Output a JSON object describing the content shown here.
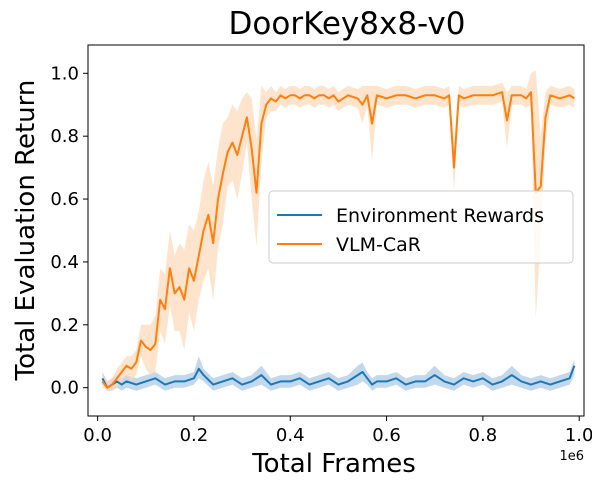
{
  "chart_data": {
    "type": "line",
    "title": "DoorKey8x8-v0",
    "xlabel": "Total Frames",
    "ylabel": "Total Evaluation Return",
    "x_scale_label": "1e6",
    "xlim": [
      -0.02,
      1.01
    ],
    "ylim": [
      -0.09,
      1.09
    ],
    "x_ticks": [
      0.0,
      0.2,
      0.4,
      0.6,
      0.8,
      1.0
    ],
    "x_tick_labels": [
      "0.0",
      "0.2",
      "0.4",
      "0.6",
      "0.8",
      "1.0"
    ],
    "y_ticks": [
      0.0,
      0.2,
      0.4,
      0.6,
      0.8,
      1.0
    ],
    "y_tick_labels": [
      "0.0",
      "0.2",
      "0.4",
      "0.6",
      "0.8",
      "1.0"
    ],
    "grid": false,
    "legend_position": "center-right",
    "series": [
      {
        "name": "Environment Rewards",
        "color": "#1f77b4",
        "band_color": "#a8c8e6",
        "x": [
          0.01,
          0.02,
          0.03,
          0.04,
          0.05,
          0.06,
          0.08,
          0.1,
          0.12,
          0.14,
          0.16,
          0.18,
          0.2,
          0.21,
          0.22,
          0.24,
          0.26,
          0.28,
          0.3,
          0.32,
          0.34,
          0.36,
          0.38,
          0.4,
          0.42,
          0.44,
          0.46,
          0.48,
          0.5,
          0.52,
          0.54,
          0.55,
          0.56,
          0.57,
          0.58,
          0.6,
          0.62,
          0.64,
          0.66,
          0.68,
          0.7,
          0.72,
          0.74,
          0.76,
          0.78,
          0.8,
          0.82,
          0.84,
          0.86,
          0.88,
          0.9,
          0.92,
          0.94,
          0.96,
          0.98,
          0.99
        ],
        "y": [
          0.03,
          0.0,
          0.01,
          0.02,
          0.01,
          0.02,
          0.01,
          0.02,
          0.03,
          0.01,
          0.02,
          0.02,
          0.03,
          0.06,
          0.04,
          0.01,
          0.02,
          0.03,
          0.01,
          0.02,
          0.04,
          0.01,
          0.02,
          0.02,
          0.03,
          0.01,
          0.02,
          0.03,
          0.01,
          0.02,
          0.04,
          0.05,
          0.03,
          0.01,
          0.02,
          0.02,
          0.03,
          0.01,
          0.02,
          0.02,
          0.04,
          0.02,
          0.01,
          0.03,
          0.02,
          0.03,
          0.01,
          0.02,
          0.04,
          0.02,
          0.01,
          0.02,
          0.01,
          0.02,
          0.03,
          0.07
        ],
        "lower": [
          0.01,
          -0.01,
          -0.01,
          0.0,
          -0.01,
          0.0,
          -0.01,
          0.0,
          0.01,
          -0.01,
          0.0,
          0.0,
          0.01,
          0.03,
          0.02,
          -0.01,
          0.0,
          0.01,
          -0.01,
          0.0,
          0.01,
          -0.01,
          0.0,
          0.0,
          0.01,
          -0.01,
          0.0,
          0.01,
          -0.01,
          0.0,
          0.01,
          0.02,
          0.01,
          -0.01,
          0.0,
          0.0,
          0.01,
          -0.01,
          0.0,
          0.0,
          0.01,
          0.0,
          -0.01,
          0.01,
          0.0,
          0.01,
          -0.01,
          0.0,
          0.01,
          0.0,
          -0.01,
          0.0,
          -0.01,
          0.0,
          0.01,
          0.04
        ],
        "upper": [
          0.05,
          0.02,
          0.03,
          0.04,
          0.03,
          0.04,
          0.03,
          0.04,
          0.05,
          0.03,
          0.04,
          0.04,
          0.05,
          0.1,
          0.06,
          0.03,
          0.04,
          0.05,
          0.03,
          0.04,
          0.07,
          0.03,
          0.04,
          0.04,
          0.05,
          0.03,
          0.04,
          0.05,
          0.03,
          0.04,
          0.07,
          0.08,
          0.05,
          0.03,
          0.04,
          0.04,
          0.05,
          0.03,
          0.04,
          0.04,
          0.07,
          0.04,
          0.03,
          0.05,
          0.04,
          0.05,
          0.03,
          0.04,
          0.07,
          0.04,
          0.03,
          0.04,
          0.03,
          0.04,
          0.05,
          0.09
        ]
      },
      {
        "name": "VLM-CaR",
        "color": "#ff7f0e",
        "band_color": "#ffd9b8",
        "x": [
          0.01,
          0.02,
          0.03,
          0.04,
          0.05,
          0.06,
          0.07,
          0.08,
          0.09,
          0.1,
          0.11,
          0.12,
          0.13,
          0.14,
          0.15,
          0.16,
          0.17,
          0.18,
          0.19,
          0.2,
          0.21,
          0.22,
          0.23,
          0.24,
          0.25,
          0.26,
          0.27,
          0.28,
          0.29,
          0.3,
          0.31,
          0.32,
          0.33,
          0.34,
          0.35,
          0.36,
          0.37,
          0.38,
          0.39,
          0.4,
          0.41,
          0.42,
          0.43,
          0.44,
          0.45,
          0.46,
          0.47,
          0.48,
          0.49,
          0.5,
          0.52,
          0.54,
          0.55,
          0.56,
          0.57,
          0.58,
          0.6,
          0.62,
          0.64,
          0.66,
          0.68,
          0.7,
          0.72,
          0.73,
          0.74,
          0.75,
          0.76,
          0.78,
          0.8,
          0.82,
          0.84,
          0.85,
          0.86,
          0.88,
          0.89,
          0.9,
          0.91,
          0.92,
          0.93,
          0.94,
          0.96,
          0.98,
          0.99
        ],
        "y": [
          0.02,
          0.0,
          0.01,
          0.03,
          0.05,
          0.07,
          0.06,
          0.08,
          0.15,
          0.13,
          0.12,
          0.14,
          0.28,
          0.25,
          0.38,
          0.3,
          0.32,
          0.28,
          0.38,
          0.34,
          0.42,
          0.5,
          0.55,
          0.46,
          0.6,
          0.68,
          0.75,
          0.78,
          0.74,
          0.8,
          0.86,
          0.76,
          0.62,
          0.84,
          0.9,
          0.92,
          0.91,
          0.93,
          0.92,
          0.93,
          0.93,
          0.92,
          0.93,
          0.93,
          0.92,
          0.93,
          0.93,
          0.92,
          0.93,
          0.91,
          0.93,
          0.92,
          0.9,
          0.93,
          0.84,
          0.93,
          0.92,
          0.93,
          0.93,
          0.92,
          0.93,
          0.93,
          0.92,
          0.93,
          0.7,
          0.93,
          0.92,
          0.93,
          0.93,
          0.93,
          0.94,
          0.85,
          0.93,
          0.93,
          0.92,
          0.94,
          0.62,
          0.64,
          0.86,
          0.93,
          0.92,
          0.93,
          0.92
        ],
        "lower": [
          0.0,
          -0.01,
          -0.01,
          0.0,
          0.02,
          0.04,
          0.02,
          0.04,
          0.1,
          0.06,
          0.04,
          0.05,
          0.18,
          0.14,
          0.26,
          0.18,
          0.18,
          0.12,
          0.24,
          0.18,
          0.28,
          0.34,
          0.38,
          0.28,
          0.44,
          0.52,
          0.64,
          0.66,
          0.6,
          0.68,
          0.78,
          0.6,
          0.45,
          0.72,
          0.86,
          0.88,
          0.88,
          0.9,
          0.89,
          0.9,
          0.9,
          0.89,
          0.9,
          0.9,
          0.89,
          0.9,
          0.9,
          0.89,
          0.9,
          0.88,
          0.9,
          0.89,
          0.84,
          0.9,
          0.72,
          0.9,
          0.89,
          0.9,
          0.9,
          0.89,
          0.9,
          0.9,
          0.89,
          0.9,
          0.62,
          0.9,
          0.89,
          0.9,
          0.9,
          0.9,
          0.91,
          0.76,
          0.9,
          0.9,
          0.89,
          0.9,
          0.22,
          0.48,
          0.78,
          0.9,
          0.89,
          0.9,
          0.89
        ],
        "upper": [
          0.04,
          0.02,
          0.03,
          0.06,
          0.08,
          0.1,
          0.1,
          0.12,
          0.2,
          0.2,
          0.2,
          0.23,
          0.38,
          0.36,
          0.5,
          0.42,
          0.46,
          0.44,
          0.52,
          0.5,
          0.56,
          0.66,
          0.72,
          0.64,
          0.76,
          0.84,
          0.86,
          0.9,
          0.88,
          0.92,
          0.94,
          0.92,
          0.79,
          0.96,
          0.94,
          0.96,
          0.94,
          0.96,
          0.95,
          0.96,
          0.96,
          0.95,
          0.96,
          0.96,
          0.95,
          0.96,
          0.96,
          0.95,
          0.96,
          0.94,
          0.96,
          0.95,
          0.96,
          0.96,
          0.96,
          0.96,
          0.95,
          0.96,
          0.96,
          0.95,
          0.96,
          0.96,
          0.95,
          0.96,
          0.78,
          0.96,
          0.95,
          0.96,
          0.96,
          0.96,
          0.97,
          0.94,
          0.96,
          0.96,
          0.95,
          1.0,
          1.01,
          0.8,
          0.94,
          0.96,
          0.95,
          0.96,
          0.95
        ]
      }
    ]
  }
}
